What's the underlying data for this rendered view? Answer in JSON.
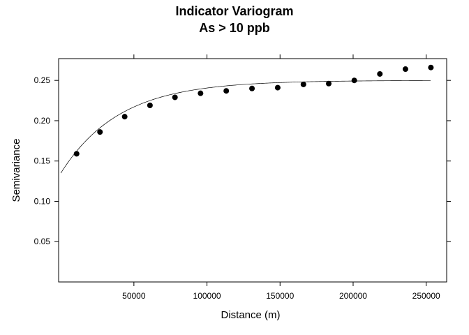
{
  "chart_data": {
    "type": "scatter",
    "title": "Indicator Variogram",
    "subtitle": "As > 10 ppb",
    "xlabel": "Distance (m)",
    "ylabel": "Semivariance",
    "xlim": [
      -1500,
      264000
    ],
    "ylim": [
      0.0,
      0.277
    ],
    "x_ticks": [
      50000,
      100000,
      150000,
      200000,
      250000
    ],
    "x_tick_labels": [
      "50000",
      "100000",
      "150000",
      "200000",
      "250000"
    ],
    "y_ticks": [
      0.05,
      0.1,
      0.15,
      0.2,
      0.25
    ],
    "y_tick_labels": [
      "0.05",
      "0.10",
      "0.15",
      "0.20",
      "0.25"
    ],
    "series": [
      {
        "type": "scatter",
        "x": [
          10800,
          26800,
          43700,
          61000,
          78100,
          95600,
          113200,
          130800,
          148400,
          166000,
          183300,
          200800,
          218300,
          235800,
          253200
        ],
        "y": [
          0.159,
          0.186,
          0.205,
          0.219,
          0.229,
          0.234,
          0.237,
          0.24,
          0.241,
          0.245,
          0.246,
          0.25,
          0.258,
          0.264,
          0.266
        ],
        "color": "#000000"
      },
      {
        "type": "line",
        "model": "exponential",
        "nugget": 0.135,
        "sill": 0.25,
        "range": 40000,
        "x_end": 253000,
        "color": "#000000"
      }
    ],
    "grid": false,
    "legend": "none"
  }
}
